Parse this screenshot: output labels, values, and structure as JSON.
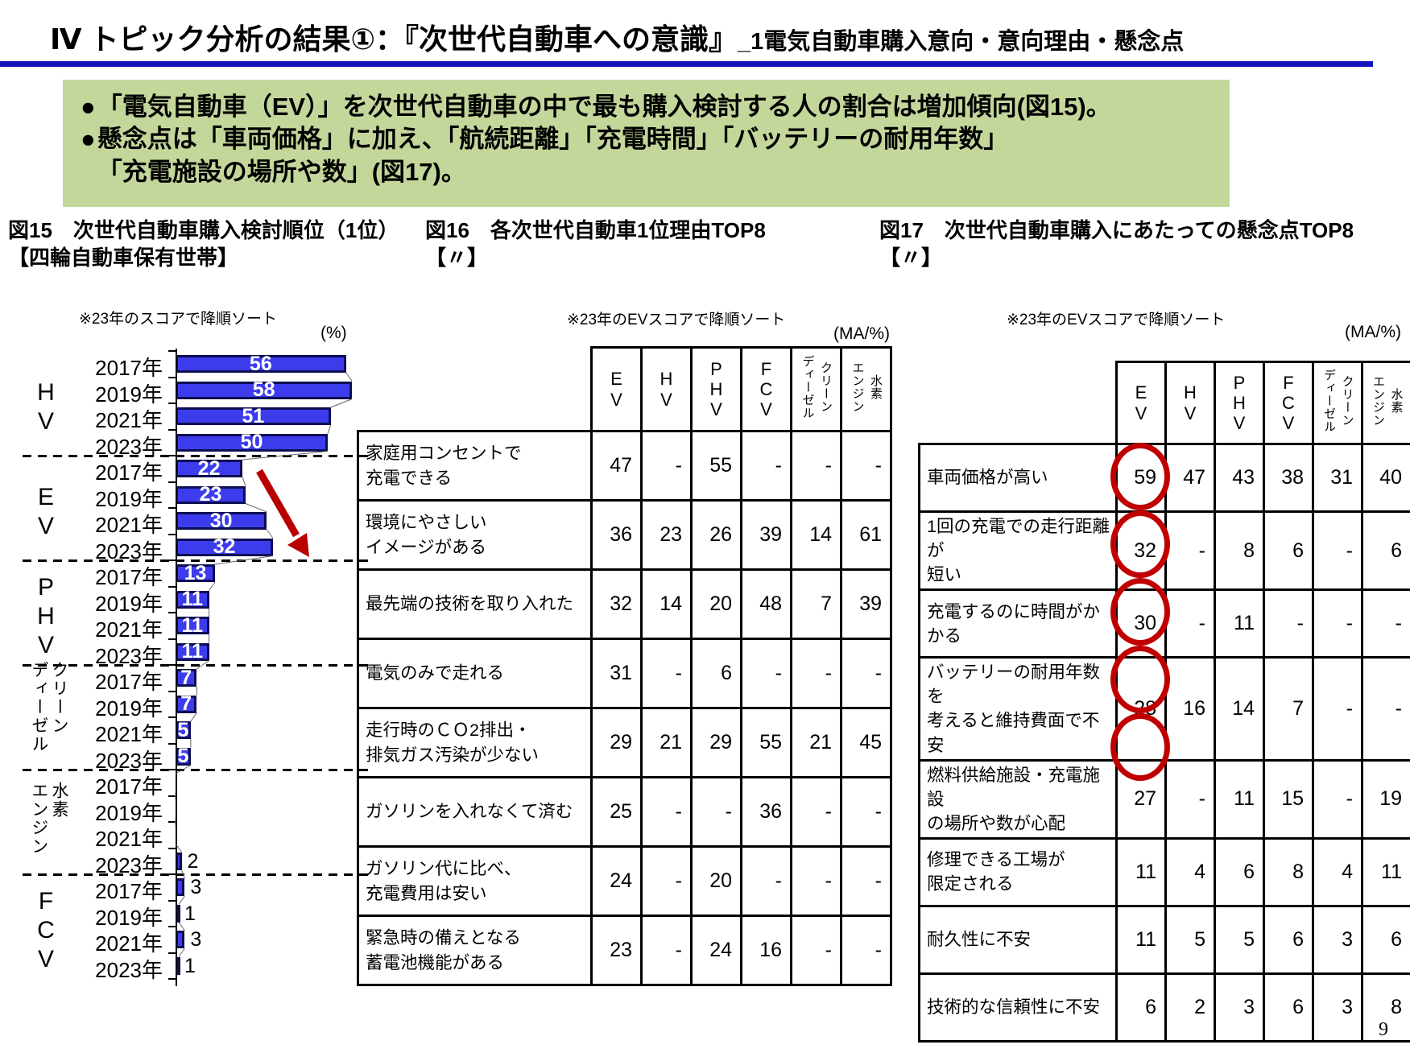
{
  "header": {
    "title_main": "Ⅳ トピック分析の結果①：『次世代自動車への意識』",
    "title_sub": "_1電気自動車購入意向・意向理由・懸念点",
    "rule_color": "#1414BE"
  },
  "summary": {
    "bullet_char": "●",
    "bg_color": "#C4D79B",
    "bullets": [
      "「電気自動車（EV）」を次世代自動車の中で最も購入検討する人の割合は増加傾向(図15)。",
      "懸念点は「車両価格」に加え、「航続距離」「充電時間」「バッテリーの耐用年数」\n「充電施設の場所や数」(図17)。"
    ]
  },
  "page_number": "9",
  "colors": {
    "bar_fill": "#3C3CEC",
    "bar_border": "#0E0E55",
    "highlight_red": "#C00000",
    "arrow_red": "#B80000"
  },
  "chart_data": [
    {
      "type": "bar",
      "fig_label_line1": "図15　次世代自動車購入検討順位（1位）",
      "fig_label_line2": "【四輪自動車保有世帯】",
      "sort_note": "※23年のスコアで降順ソート",
      "unit": "(%)",
      "xlim": [
        0,
        60
      ],
      "years": [
        "2017年",
        "2019年",
        "2021年",
        "2023年"
      ],
      "groups": [
        {
          "name": "HV",
          "display": "H\nV",
          "vertical": false,
          "values": [
            56,
            58,
            51,
            50
          ]
        },
        {
          "name": "EV",
          "display": "E\nV",
          "vertical": false,
          "values": [
            22,
            23,
            30,
            32
          ]
        },
        {
          "name": "PHV",
          "display": "P\nH\nV",
          "vertical": false,
          "values": [
            13,
            11,
            11,
            11
          ]
        },
        {
          "name": "クリーンディーゼル",
          "display": "クリーン\nディーゼル",
          "vertical": true,
          "values": [
            7,
            7,
            5,
            5
          ]
        },
        {
          "name": "水素エンジン",
          "display": "水素\nエンジン",
          "vertical": true,
          "values": [
            null,
            null,
            null,
            2
          ]
        },
        {
          "name": "FCV",
          "display": "F\nC\nV",
          "vertical": false,
          "values": [
            3,
            1,
            3,
            1
          ]
        }
      ],
      "annotation": "EVの割合は増加傾向（赤矢印）"
    },
    {
      "type": "table",
      "fig_label_line1": "図16　各次世代自動車1位理由TOP8",
      "fig_label_line2": "【〃】",
      "sort_note": "※23年のEVスコアで降順ソート",
      "unit": "(MA/%)",
      "columns": [
        {
          "name": "EV",
          "display": "E\nV",
          "vertical": false
        },
        {
          "name": "HV",
          "display": "H\nV",
          "vertical": false
        },
        {
          "name": "PHV",
          "display": "P\nH\nV",
          "vertical": false
        },
        {
          "name": "FCV",
          "display": "F\nC\nV",
          "vertical": false
        },
        {
          "name": "クリーンディーゼル",
          "display": "クリーン\nディーゼル",
          "vertical": true
        },
        {
          "name": "水素エンジン",
          "display": "水素\nエンジン",
          "vertical": true
        }
      ],
      "rows": [
        {
          "label": "家庭用コンセントで\n充電できる",
          "values": [
            "47",
            "-",
            "55",
            "-",
            "-",
            "-"
          ]
        },
        {
          "label": "環境にやさしい\nイメージがある",
          "values": [
            "36",
            "23",
            "26",
            "39",
            "14",
            "61"
          ]
        },
        {
          "label": "最先端の技術を取り入れた",
          "values": [
            "32",
            "14",
            "20",
            "48",
            "7",
            "39"
          ]
        },
        {
          "label": "電気のみで走れる",
          "values": [
            "31",
            "-",
            "6",
            "-",
            "-",
            "-"
          ]
        },
        {
          "label": "走行時のＣＯ2排出・\n排気ガス汚染が少ない",
          "values": [
            "29",
            "21",
            "29",
            "55",
            "21",
            "45"
          ]
        },
        {
          "label": "ガソリンを入れなくて済む",
          "values": [
            "25",
            "-",
            "-",
            "36",
            "-",
            "-"
          ]
        },
        {
          "label": "ガソリン代に比べ、\n充電費用は安い",
          "values": [
            "24",
            "-",
            "20",
            "-",
            "-",
            "-"
          ]
        },
        {
          "label": "緊急時の備えとなる\n蓄電池機能がある",
          "values": [
            "23",
            "-",
            "24",
            "16",
            "-",
            "-"
          ]
        }
      ]
    },
    {
      "type": "table",
      "fig_label_line1": "図17　次世代自動車購入にあたっての懸念点TOP8",
      "fig_label_line2": "【〃】",
      "sort_note": "※23年のEVスコアで降順ソート",
      "unit": "(MA/%)",
      "columns": [
        {
          "name": "EV",
          "display": "E\nV",
          "vertical": false
        },
        {
          "name": "HV",
          "display": "H\nV",
          "vertical": false
        },
        {
          "name": "PHV",
          "display": "P\nH\nV",
          "vertical": false
        },
        {
          "name": "FCV",
          "display": "F\nC\nV",
          "vertical": false
        },
        {
          "name": "クリーンディーゼル",
          "display": "クリーン\nディーゼル",
          "vertical": true
        },
        {
          "name": "水素エンジン",
          "display": "水素\nエンジン",
          "vertical": true
        }
      ],
      "circled_column": "EV",
      "circled_rows": [
        0,
        1,
        2,
        3,
        4
      ],
      "rows": [
        {
          "label": "車両価格が高い",
          "values": [
            "59",
            "47",
            "43",
            "38",
            "31",
            "40"
          ]
        },
        {
          "label": "1回の充電での走行距離が\n短い",
          "values": [
            "32",
            "-",
            "8",
            "6",
            "-",
            "6"
          ]
        },
        {
          "label": "充電するのに時間がかかる",
          "values": [
            "30",
            "-",
            "11",
            "-",
            "-",
            "-"
          ]
        },
        {
          "label": "バッテリーの耐用年数を\n考えると維持費面で不安",
          "values": [
            "28",
            "16",
            "14",
            "7",
            "-",
            "-"
          ]
        },
        {
          "label": "燃料供給施設・充電施設\nの場所や数が心配",
          "values": [
            "27",
            "-",
            "11",
            "15",
            "-",
            "19"
          ]
        },
        {
          "label": "修理できる工場が\n限定される",
          "values": [
            "11",
            "4",
            "6",
            "8",
            "4",
            "11"
          ]
        },
        {
          "label": "耐久性に不安",
          "values": [
            "11",
            "5",
            "5",
            "6",
            "3",
            "6"
          ]
        },
        {
          "label": "技術的な信頼性に不安",
          "values": [
            "6",
            "2",
            "3",
            "6",
            "3",
            "8"
          ]
        }
      ]
    }
  ]
}
